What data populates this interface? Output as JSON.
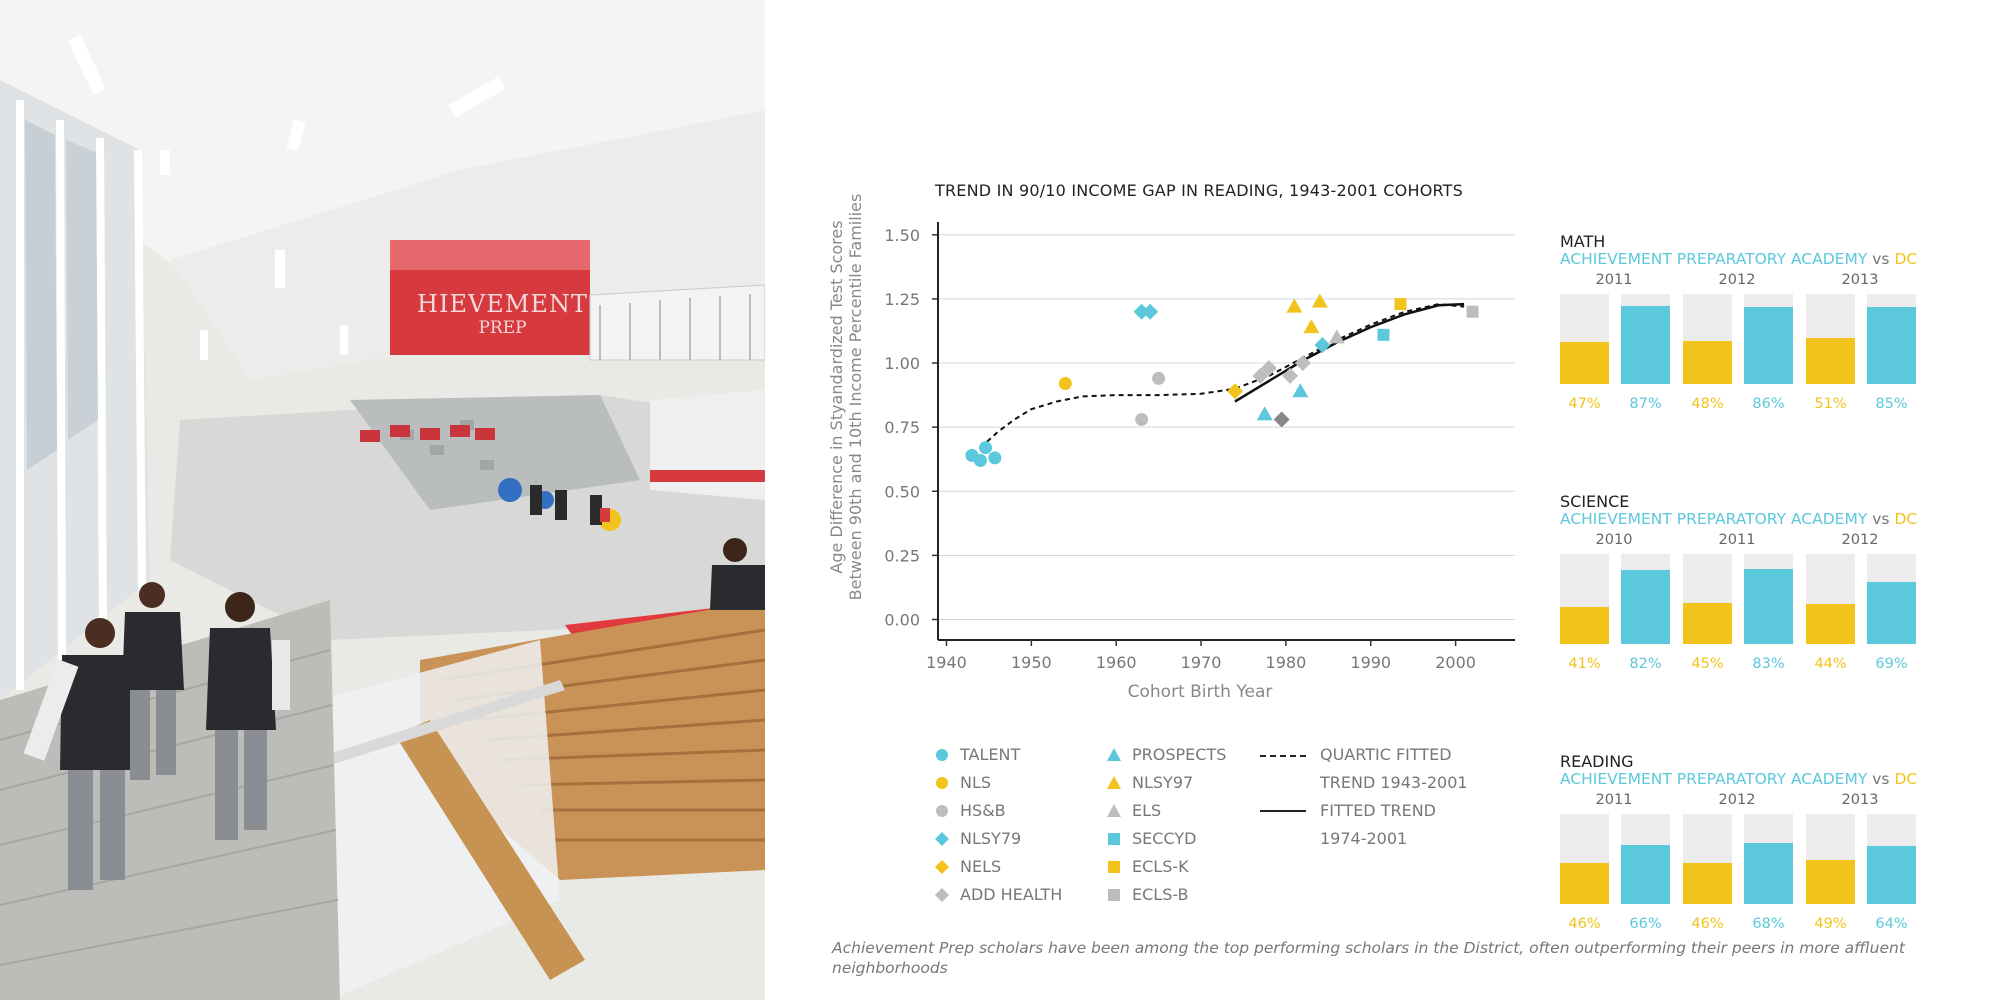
{
  "photo": {
    "sign_main": "HIEVEMENT",
    "sign_sub": "PREP"
  },
  "chart_data": {
    "type": "scatter",
    "title": "TREND IN 90/10 INCOME GAP IN READING, 1943-2001 COHORTS",
    "xlabel": "Cohort Birth Year",
    "ylabel": "Age Difference in Styandardized Test Scores Between 90th and 10th Income Percentile Families",
    "xlim": [
      1939,
      2007
    ],
    "ylim": [
      -0.08,
      1.55
    ],
    "xticks": [
      1940,
      1950,
      1960,
      1970,
      1980,
      1990,
      2000
    ],
    "yticks": [
      0.0,
      0.25,
      0.5,
      0.75,
      1.0,
      1.25,
      1.5
    ],
    "ytick_labels": [
      "0.00",
      "0.25",
      "0.50",
      "0.75",
      "1.00",
      "1.25",
      "1.50"
    ],
    "grid": "horizontal",
    "series": [
      {
        "name": "TALENT",
        "marker": "circle",
        "color": "#5bc8dc",
        "points": [
          [
            1943,
            0.64
          ],
          [
            1944,
            0.62
          ],
          [
            1944.6,
            0.67
          ],
          [
            1945.7,
            0.63
          ]
        ]
      },
      {
        "name": "NLS",
        "marker": "circle",
        "color": "#f2c31b",
        "points": [
          [
            1954,
            0.92
          ]
        ]
      },
      {
        "name": "HS&B",
        "marker": "circle",
        "color": "#bdbdbd",
        "points": [
          [
            1963,
            0.78
          ],
          [
            1965,
            0.94
          ]
        ]
      },
      {
        "name": "NLSY79",
        "marker": "diamond",
        "color": "#5bc8dc",
        "points": [
          [
            1963,
            1.2
          ],
          [
            1964,
            1.2
          ]
        ]
      },
      {
        "name": "NELS",
        "marker": "diamond",
        "color": "#f2c31b",
        "points": [
          [
            1974,
            0.89
          ]
        ]
      },
      {
        "name": "ADD HEALTH",
        "marker": "diamond",
        "color": "#bdbdbd",
        "points": [
          [
            1977,
            0.95
          ],
          [
            1978,
            0.98
          ],
          [
            1980.5,
            0.95
          ],
          [
            1982,
            1.0
          ]
        ]
      },
      {
        "name": "PROSPECTS",
        "marker": "triangle",
        "color": "#5bc8dc",
        "points": [
          [
            1977.5,
            0.8
          ],
          [
            1981.7,
            0.89
          ]
        ]
      },
      {
        "name": "NLSY97",
        "marker": "triangle",
        "color": "#f2c31b",
        "points": [
          [
            1981,
            1.22
          ],
          [
            1983,
            1.14
          ],
          [
            1984,
            1.24
          ]
        ]
      },
      {
        "name": "ELS",
        "marker": "triangle",
        "color": "#bdbdbd",
        "points": [
          [
            1986,
            1.1
          ]
        ]
      },
      {
        "name": "SECCYD",
        "marker": "square",
        "color": "#5bc8dc",
        "points": [
          [
            1991.5,
            1.11
          ]
        ]
      },
      {
        "name": "ECLS-K",
        "marker": "square",
        "color": "#f2c31b",
        "points": [
          [
            1993.5,
            1.23
          ]
        ]
      },
      {
        "name": "ECLS-B",
        "marker": "square",
        "color": "#bdbdbd",
        "points": [
          [
            2002,
            1.2
          ]
        ]
      },
      {
        "name": "dark-diamond",
        "marker": "diamond",
        "color": "#888888",
        "points": [
          [
            1979.5,
            0.78
          ]
        ]
      },
      {
        "name": "cyan-diamond",
        "marker": "diamond",
        "color": "#5bc8dc",
        "points": [
          [
            1984.3,
            1.07
          ]
        ]
      }
    ],
    "trends": [
      {
        "name": "QUARTIC FITTED TREND 1943-2001",
        "style": "dashed",
        "points": [
          [
            1944,
            0.67
          ],
          [
            1946,
            0.73
          ],
          [
            1948,
            0.78
          ],
          [
            1950,
            0.82
          ],
          [
            1953,
            0.85
          ],
          [
            1956,
            0.87
          ],
          [
            1960,
            0.875
          ],
          [
            1965,
            0.875
          ],
          [
            1970,
            0.88
          ],
          [
            1974,
            0.9
          ],
          [
            1978,
            0.95
          ],
          [
            1982,
            1.02
          ],
          [
            1986,
            1.09
          ],
          [
            1990,
            1.15
          ],
          [
            1994,
            1.2
          ],
          [
            1998,
            1.23
          ],
          [
            2001,
            1.22
          ]
        ]
      },
      {
        "name": "FITTED TREND 1974-2001",
        "style": "solid",
        "points": [
          [
            1974,
            0.85
          ],
          [
            1978,
            0.93
          ],
          [
            1982,
            1.01
          ],
          [
            1986,
            1.08
          ],
          [
            1990,
            1.14
          ],
          [
            1994,
            1.19
          ],
          [
            1998,
            1.225
          ],
          [
            2001,
            1.23
          ]
        ]
      }
    ]
  },
  "legend": {
    "col1": [
      "TALENT",
      "NLS",
      "HS&B",
      "NLSY79",
      "NELS",
      "ADD HEALTH"
    ],
    "col2": [
      "PROSPECTS",
      "NLSY97",
      "ELS",
      "SECCYD",
      "ECLS-K",
      "ECLS-B"
    ],
    "line1_a": "QUARTIC FITTED",
    "line1_b": "TREND 1943-2001",
    "line2_a": "FITTED TREND",
    "line2_b": "1974-2001"
  },
  "panels": [
    {
      "title": "MATH",
      "school": "ACHIEVEMENT PREPARATORY ACADEMY",
      "vs": "vs",
      "dc": "DC",
      "years": [
        "2011",
        "2012",
        "2013"
      ],
      "dc_values": [
        47,
        48,
        51
      ],
      "school_values": [
        87,
        86,
        85
      ],
      "dc_labels": [
        "47%",
        "48%",
        "51%"
      ],
      "school_labels": [
        "87%",
        "86%",
        "85%"
      ]
    },
    {
      "title": "SCIENCE",
      "school": "ACHIEVEMENT PREPARATORY ACADEMY",
      "vs": "vs",
      "dc": "DC",
      "years": [
        "2010",
        "2011",
        "2012"
      ],
      "dc_values": [
        41,
        45,
        44
      ],
      "school_values": [
        82,
        83,
        69
      ],
      "dc_labels": [
        "41%",
        "45%",
        "44%"
      ],
      "school_labels": [
        "82%",
        "83%",
        "69%"
      ]
    },
    {
      "title": "READING",
      "school": "ACHIEVEMENT PREPARATORY ACADEMY",
      "vs": "vs",
      "dc": "DC",
      "years": [
        "2011",
        "2012",
        "2013"
      ],
      "dc_values": [
        46,
        46,
        49
      ],
      "school_values": [
        66,
        68,
        64
      ],
      "dc_labels": [
        "46%",
        "46%",
        "49%"
      ],
      "school_labels": [
        "66%",
        "68%",
        "64%"
      ]
    }
  ],
  "colors": {
    "cyan": "#5bc8dc",
    "gold": "#f2c31b",
    "gray": "#bdbdbd",
    "bar_bg": "#ececec"
  },
  "caption": "Achievement Prep scholars have been among the top performing scholars in the District, often outperforming their peers in more affluent neighborhoods"
}
